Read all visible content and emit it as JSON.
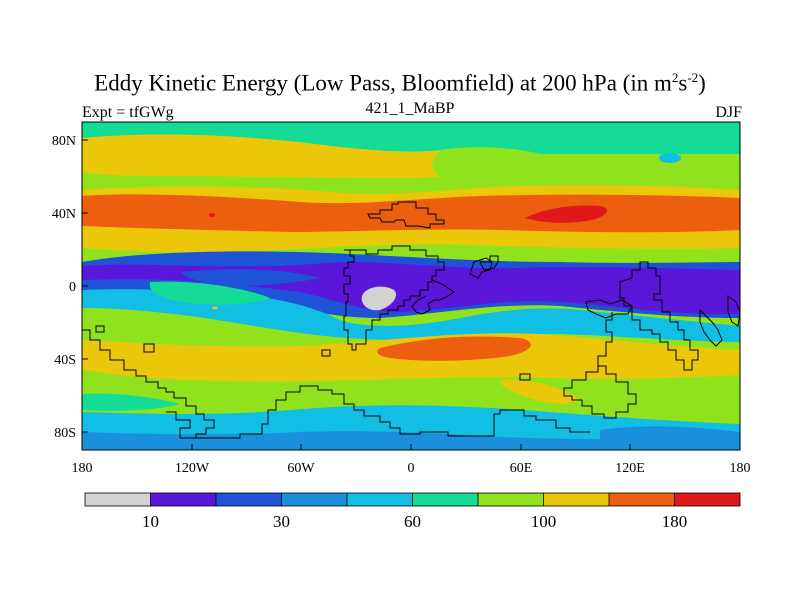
{
  "title": {
    "main": "Eddy Kinetic Energy (Low Pass, Bloomfield) at 200 hPa (in m",
    "sup1": "2",
    "mid": "s",
    "sup2": "-2",
    "end": ")"
  },
  "expt_label": "Expt = tfGWg",
  "subtitle": "421_1_MaBP",
  "season": "DJF",
  "colors": {
    "grey": "#d2d2d2",
    "purple": "#5a16d9",
    "blue": "#1e53d8",
    "midblue": "#1a8fdc",
    "cyan": "#10bfe3",
    "teal": "#14dc96",
    "green": "#90e31c",
    "yellow": "#ebc70a",
    "orange": "#ec5f0e",
    "red": "#e0181c"
  },
  "map_data": {
    "projection": "cylindrical-equidistant",
    "lon_range": [
      -180,
      180
    ],
    "lat_range": [
      -90,
      90
    ],
    "x_tick_labels": [
      "180",
      "120W",
      "60W",
      "0",
      "60E",
      "120E",
      "180"
    ],
    "y_tick_labels": [
      "80N",
      "40N",
      "0",
      "40S",
      "80S"
    ],
    "colorbar_labels": [
      "10",
      "30",
      "60",
      "100",
      "180"
    ],
    "colorbar_colors": [
      "grey",
      "purple",
      "blue",
      "midblue",
      "cyan",
      "teal",
      "green",
      "yellow",
      "orange",
      "red"
    ]
  }
}
